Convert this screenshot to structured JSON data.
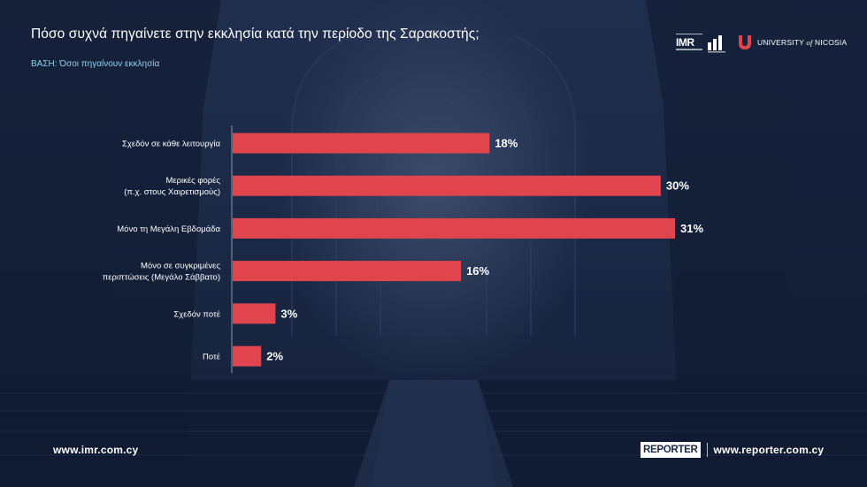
{
  "header": {
    "title": "Πόσο συχνά πηγαίνετε στην εκκλησία κατά την περίοδο της Σαρακοστής;",
    "subtitle": "ΒΑΣΗ: Όσοι πηγαίνουν εκκλησία"
  },
  "logos": {
    "imr_text": "IMR",
    "university_text": "UNIVERSITY",
    "university_of": "of",
    "university_name": "NICOSIA"
  },
  "chart_data": {
    "type": "bar",
    "orientation": "horizontal",
    "categories": [
      [
        "Σχεδόν σε κάθε λειτουργία"
      ],
      [
        "Μερικές φορές",
        "(π.χ. στους Χαιρετισμούς)"
      ],
      [
        "Μόνο τη Μεγάλη Εβδομάδα"
      ],
      [
        "Μόνο σε συγκριμένες",
        "περιπτώσεις (Μεγάλο Σάββατο)"
      ],
      [
        "Σχεδόν ποτέ"
      ],
      [
        "Ποτέ"
      ]
    ],
    "values": [
      18,
      30,
      31,
      16,
      3,
      2
    ],
    "data_labels": [
      "18%",
      "30%",
      "31%",
      "16%",
      "3%",
      "2%"
    ],
    "xlim": [
      0,
      31
    ],
    "bar_color": "#e0454e",
    "grid": false
  },
  "footer": {
    "left_url": "www.imr.com.cy",
    "brand": "REPORTER",
    "right_url": "www.reporter.com.cy"
  }
}
